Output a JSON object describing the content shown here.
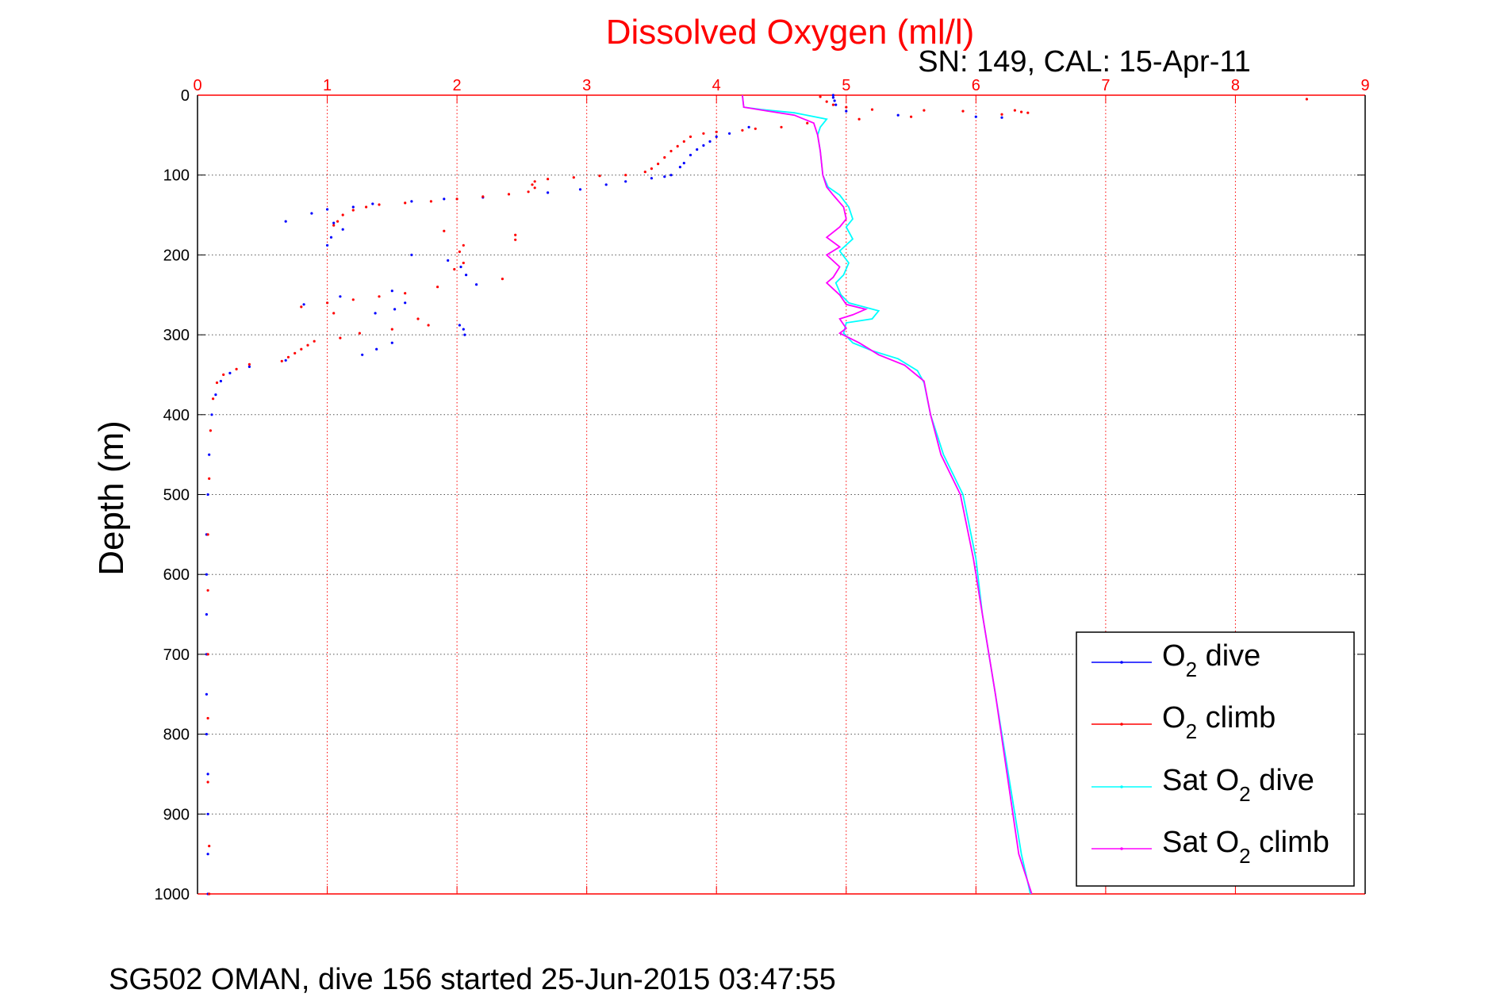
{
  "chart_data": {
    "type": "scatter",
    "title": "Dissolved Oxygen (ml/l)",
    "subtitle": "SN: 149, CAL: 15-Apr-11",
    "ylabel": "Depth (m)",
    "xlabel": "",
    "caption": "SG502 OMAN, dive 156 started 25-Jun-2015 03:47:55",
    "xlim": [
      0,
      9
    ],
    "ylim": [
      0,
      1000
    ],
    "y_reversed": true,
    "x_axis_position": "top",
    "xticks": [
      "0",
      "1",
      "2",
      "3",
      "4",
      "5",
      "6",
      "7",
      "8",
      "9"
    ],
    "yticks": [
      "0",
      "100",
      "200",
      "300",
      "400",
      "500",
      "600",
      "700",
      "800",
      "900",
      "1000"
    ],
    "grid": true,
    "legend_position": "bottom-right",
    "colors": {
      "title": "#ff0000",
      "xaxis": "#ff0000",
      "yaxis": "#000000",
      "o2_dive": "#0000ff",
      "o2_climb": "#ff0000",
      "sat_dive": "#00ffff",
      "sat_climb": "#ff00ff"
    },
    "series": [
      {
        "name": "dive",
        "legend_main": "O",
        "legend_sub": "2",
        "legend_rest": " dive",
        "color": "#0000ff",
        "style": "dots",
        "points": [
          [
            4.9,
            0
          ],
          [
            4.9,
            3
          ],
          [
            4.91,
            7
          ],
          [
            4.92,
            12
          ],
          [
            5.0,
            20
          ],
          [
            5.4,
            25
          ],
          [
            6.0,
            27
          ],
          [
            6.2,
            28
          ],
          [
            4.25,
            40
          ],
          [
            4.1,
            48
          ],
          [
            4.0,
            52
          ],
          [
            3.95,
            58
          ],
          [
            3.9,
            63
          ],
          [
            3.85,
            68
          ],
          [
            3.8,
            75
          ],
          [
            3.75,
            85
          ],
          [
            3.72,
            90
          ],
          [
            3.65,
            100
          ],
          [
            3.6,
            102
          ],
          [
            3.5,
            104
          ],
          [
            3.3,
            108
          ],
          [
            3.15,
            112
          ],
          [
            2.95,
            118
          ],
          [
            2.7,
            122
          ],
          [
            2.2,
            128
          ],
          [
            1.9,
            130
          ],
          [
            1.65,
            133
          ],
          [
            1.35,
            136
          ],
          [
            1.2,
            140
          ],
          [
            1.0,
            143
          ],
          [
            0.88,
            148
          ],
          [
            0.68,
            158
          ],
          [
            1.05,
            160
          ],
          [
            1.12,
            168
          ],
          [
            1.03,
            178
          ],
          [
            1.0,
            188
          ],
          [
            1.65,
            200
          ],
          [
            1.93,
            207
          ],
          [
            2.03,
            215
          ],
          [
            2.07,
            225
          ],
          [
            2.15,
            237
          ],
          [
            1.5,
            245
          ],
          [
            1.1,
            252
          ],
          [
            1.6,
            260
          ],
          [
            0.82,
            262
          ],
          [
            1.52,
            268
          ],
          [
            1.37,
            273
          ],
          [
            2.02,
            288
          ],
          [
            2.05,
            293
          ],
          [
            2.06,
            300
          ],
          [
            1.5,
            310
          ],
          [
            1.38,
            318
          ],
          [
            1.27,
            325
          ],
          [
            0.68,
            332
          ],
          [
            0.4,
            340
          ],
          [
            0.25,
            348
          ],
          [
            0.18,
            358
          ],
          [
            0.14,
            375
          ],
          [
            0.11,
            400
          ],
          [
            0.09,
            450
          ],
          [
            0.08,
            500
          ],
          [
            0.07,
            550
          ],
          [
            0.07,
            600
          ],
          [
            0.07,
            650
          ],
          [
            0.07,
            700
          ],
          [
            0.07,
            750
          ],
          [
            0.07,
            800
          ],
          [
            0.08,
            850
          ],
          [
            0.08,
            900
          ],
          [
            0.08,
            950
          ],
          [
            0.08,
            1000
          ]
        ]
      },
      {
        "name": "climb",
        "legend_main": "O",
        "legend_sub": "2",
        "legend_rest": " climb",
        "color": "#ff0000",
        "style": "dots",
        "points": [
          [
            4.8,
            2
          ],
          [
            4.85,
            8
          ],
          [
            4.9,
            12
          ],
          [
            5.0,
            15
          ],
          [
            5.2,
            18
          ],
          [
            5.6,
            19
          ],
          [
            5.9,
            20
          ],
          [
            6.3,
            19
          ],
          [
            6.35,
            21
          ],
          [
            6.4,
            22
          ],
          [
            6.2,
            24
          ],
          [
            5.5,
            27
          ],
          [
            5.1,
            30
          ],
          [
            4.7,
            35
          ],
          [
            4.5,
            40
          ],
          [
            4.3,
            42
          ],
          [
            4.2,
            44
          ],
          [
            4.0,
            46
          ],
          [
            3.9,
            48
          ],
          [
            3.8,
            52
          ],
          [
            3.75,
            58
          ],
          [
            3.7,
            64
          ],
          [
            3.65,
            70
          ],
          [
            3.6,
            78
          ],
          [
            3.55,
            86
          ],
          [
            3.5,
            92
          ],
          [
            3.45,
            96
          ],
          [
            3.3,
            100
          ],
          [
            3.1,
            101
          ],
          [
            2.9,
            103
          ],
          [
            2.7,
            105
          ],
          [
            2.6,
            108
          ],
          [
            2.58,
            112
          ],
          [
            2.6,
            116
          ],
          [
            2.55,
            121
          ],
          [
            2.4,
            124
          ],
          [
            2.2,
            127
          ],
          [
            2.0,
            130
          ],
          [
            1.8,
            133
          ],
          [
            1.6,
            135
          ],
          [
            1.4,
            137
          ],
          [
            1.3,
            140
          ],
          [
            1.2,
            144
          ],
          [
            1.12,
            150
          ],
          [
            1.08,
            158
          ],
          [
            1.05,
            163
          ],
          [
            1.9,
            170
          ],
          [
            2.45,
            175
          ],
          [
            2.45,
            181
          ],
          [
            2.05,
            188
          ],
          [
            2.02,
            196
          ],
          [
            2.05,
            210
          ],
          [
            1.98,
            218
          ],
          [
            2.35,
            230
          ],
          [
            1.85,
            240
          ],
          [
            1.6,
            248
          ],
          [
            1.4,
            252
          ],
          [
            1.2,
            256
          ],
          [
            1.0,
            260
          ],
          [
            0.8,
            265
          ],
          [
            1.05,
            273
          ],
          [
            1.7,
            280
          ],
          [
            1.78,
            288
          ],
          [
            1.5,
            293
          ],
          [
            1.25,
            298
          ],
          [
            1.1,
            304
          ],
          [
            0.9,
            308
          ],
          [
            0.85,
            313
          ],
          [
            0.8,
            318
          ],
          [
            0.75,
            323
          ],
          [
            0.7,
            328
          ],
          [
            0.65,
            333
          ],
          [
            0.4,
            337
          ],
          [
            0.3,
            343
          ],
          [
            0.2,
            350
          ],
          [
            0.15,
            360
          ],
          [
            0.12,
            380
          ],
          [
            0.1,
            420
          ],
          [
            0.09,
            480
          ],
          [
            0.08,
            550
          ],
          [
            0.08,
            620
          ],
          [
            0.08,
            700
          ],
          [
            0.08,
            780
          ],
          [
            0.08,
            860
          ],
          [
            0.09,
            940
          ],
          [
            0.09,
            1000
          ],
          [
            8.55,
            5
          ]
        ]
      },
      {
        "name": "Sat dive",
        "legend_main": "Sat O",
        "legend_sub": "2",
        "legend_rest": " dive",
        "color": "#00ffff",
        "style": "line",
        "points": [
          [
            4.2,
            0
          ],
          [
            4.21,
            15
          ],
          [
            4.35,
            18
          ],
          [
            4.6,
            22
          ],
          [
            4.85,
            30
          ],
          [
            4.8,
            40
          ],
          [
            4.78,
            50
          ],
          [
            4.8,
            70
          ],
          [
            4.82,
            100
          ],
          [
            4.86,
            115
          ],
          [
            4.95,
            125
          ],
          [
            5.02,
            140
          ],
          [
            5.05,
            155
          ],
          [
            5.0,
            165
          ],
          [
            5.05,
            180
          ],
          [
            4.95,
            195
          ],
          [
            5.02,
            210
          ],
          [
            4.98,
            225
          ],
          [
            4.92,
            235
          ],
          [
            4.96,
            250
          ],
          [
            5.02,
            260
          ],
          [
            5.25,
            270
          ],
          [
            5.2,
            280
          ],
          [
            5.0,
            285
          ],
          [
            4.98,
            298
          ],
          [
            5.05,
            310
          ],
          [
            5.2,
            320
          ],
          [
            5.4,
            330
          ],
          [
            5.55,
            345
          ],
          [
            5.6,
            360
          ],
          [
            5.65,
            400
          ],
          [
            5.75,
            450
          ],
          [
            5.9,
            500
          ],
          [
            6.0,
            580
          ],
          [
            6.05,
            650
          ],
          [
            6.15,
            750
          ],
          [
            6.25,
            850
          ],
          [
            6.35,
            950
          ],
          [
            6.42,
            1000
          ]
        ]
      },
      {
        "name": "Sat climb",
        "legend_main": "Sat O",
        "legend_sub": "2",
        "legend_rest": " climb",
        "color": "#ff00ff",
        "style": "line",
        "points": [
          [
            4.2,
            0
          ],
          [
            4.21,
            15
          ],
          [
            4.4,
            20
          ],
          [
            4.6,
            25
          ],
          [
            4.75,
            35
          ],
          [
            4.78,
            50
          ],
          [
            4.8,
            70
          ],
          [
            4.82,
            100
          ],
          [
            4.85,
            115
          ],
          [
            4.9,
            125
          ],
          [
            4.98,
            140
          ],
          [
            5.0,
            155
          ],
          [
            4.95,
            165
          ],
          [
            4.85,
            178
          ],
          [
            4.95,
            190
          ],
          [
            4.85,
            200
          ],
          [
            4.95,
            215
          ],
          [
            4.9,
            228
          ],
          [
            4.85,
            235
          ],
          [
            4.95,
            250
          ],
          [
            5.0,
            262
          ],
          [
            5.15,
            268
          ],
          [
            5.05,
            275
          ],
          [
            4.95,
            280
          ],
          [
            5.0,
            292
          ],
          [
            4.95,
            298
          ],
          [
            5.1,
            310
          ],
          [
            5.25,
            325
          ],
          [
            5.45,
            338
          ],
          [
            5.6,
            358
          ],
          [
            5.65,
            400
          ],
          [
            5.73,
            450
          ],
          [
            5.88,
            500
          ],
          [
            5.98,
            580
          ],
          [
            6.05,
            650
          ],
          [
            6.15,
            750
          ],
          [
            6.24,
            850
          ],
          [
            6.33,
            950
          ],
          [
            6.43,
            1000
          ]
        ]
      }
    ]
  }
}
